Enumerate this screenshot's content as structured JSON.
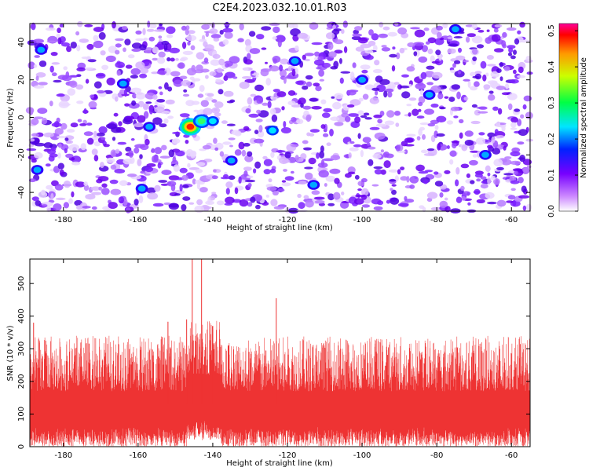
{
  "title": "C2E4.2023.032.10.01.R03",
  "chart_data": [
    {
      "type": "heatmap",
      "xlabel": "Height of straight line (km)",
      "ylabel": "Frequency (Hz)",
      "xlim": [
        -189,
        -55
      ],
      "ylim": [
        -50,
        50
      ],
      "x_ticks": [
        -180,
        -160,
        -140,
        -120,
        -100,
        -80,
        -60
      ],
      "y_ticks": [
        -40,
        -20,
        0,
        20,
        40
      ],
      "colorbar": {
        "label": "Normalized spectral amplitude",
        "range": [
          0.0,
          0.52
        ],
        "ticks": [
          "0.0",
          "0.1",
          "0.2",
          "0.3",
          "0.4",
          "0.5"
        ],
        "colormap": "rainbow (white-violet-blue-cyan-green-yellow-red)"
      },
      "hotspots": [
        {
          "x": -146,
          "y": -5,
          "value": 0.45
        },
        {
          "x": -143,
          "y": -2,
          "value": 0.28
        },
        {
          "x": -140,
          "y": -2,
          "value": 0.22
        },
        {
          "x": -124,
          "y": -7,
          "value": 0.18
        },
        {
          "x": -157,
          "y": -5,
          "value": 0.12
        },
        {
          "x": -135,
          "y": -23,
          "value": 0.12
        },
        {
          "x": -113,
          "y": -36,
          "value": 0.12
        },
        {
          "x": -186,
          "y": 36,
          "value": 0.1
        },
        {
          "x": -118,
          "y": 30,
          "value": 0.1
        },
        {
          "x": -100,
          "y": 20,
          "value": 0.1
        },
        {
          "x": -75,
          "y": 47,
          "value": 0.1
        },
        {
          "x": -159,
          "y": -38,
          "value": 0.1
        },
        {
          "x": -187,
          "y": -28,
          "value": 0.1
        },
        {
          "x": -82,
          "y": 12,
          "value": 0.1
        },
        {
          "x": -67,
          "y": -20,
          "value": 0.1
        },
        {
          "x": -164,
          "y": 18,
          "value": 0.09
        }
      ],
      "grid": false
    },
    {
      "type": "line",
      "xlabel": "Height of straight line (km)",
      "ylabel": "SNR (10 * v/v)",
      "xlim": [
        -189,
        -55
      ],
      "ylim": [
        0,
        575
      ],
      "x_ticks": [
        -180,
        -160,
        -140,
        -120,
        -100,
        -80,
        -60
      ],
      "y_ticks": [
        0,
        100,
        200,
        300,
        400,
        500
      ],
      "series": [
        {
          "color": "#ee3333",
          "baseline": 130,
          "noise_spread": [
            20,
            300
          ],
          "peaks": [
            {
              "x": -145.5,
              "y": 575
            },
            {
              "x": -143,
              "y": 575
            },
            {
              "x": -147,
              "y": 390
            },
            {
              "x": -123,
              "y": 455
            },
            {
              "x": -152,
              "y": 383
            },
            {
              "x": -188,
              "y": 380
            },
            {
              "x": -140,
              "y": 370
            }
          ]
        }
      ],
      "grid": false
    }
  ]
}
